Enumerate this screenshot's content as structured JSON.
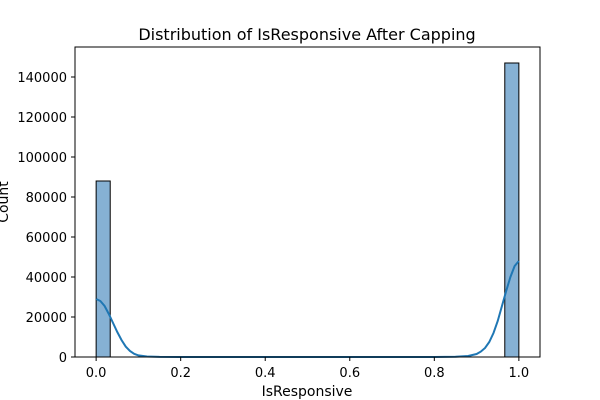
{
  "chart_data": {
    "type": "bar",
    "subtype": "histogram-with-kde",
    "title": "Distribution of IsResponsive After Capping",
    "xlabel": "IsResponsive",
    "ylabel": "Count",
    "xlim": [
      -0.05,
      1.05
    ],
    "ylim": [
      0,
      155000
    ],
    "xticks": [
      0.0,
      0.2,
      0.4,
      0.6,
      0.8,
      1.0
    ],
    "xtick_labels": [
      "0.0",
      "0.2",
      "0.4",
      "0.6",
      "0.8",
      "1.0"
    ],
    "yticks": [
      0,
      20000,
      40000,
      60000,
      80000,
      100000,
      120000,
      140000
    ],
    "ytick_labels": [
      "0",
      "20000",
      "40000",
      "60000",
      "80000",
      "100000",
      "120000",
      "140000"
    ],
    "bins": 30,
    "bars": [
      {
        "x0": 0.0,
        "x1": 0.0333,
        "count": 88000
      },
      {
        "x0": 0.9667,
        "x1": 1.0,
        "count": 147000
      }
    ],
    "kde": {
      "x": [
        0.0,
        0.01,
        0.02,
        0.03,
        0.04,
        0.05,
        0.06,
        0.07,
        0.08,
        0.09,
        0.1,
        0.12,
        0.15,
        0.2,
        0.5,
        0.8,
        0.85,
        0.88,
        0.9,
        0.91,
        0.92,
        0.93,
        0.94,
        0.95,
        0.96,
        0.97,
        0.98,
        0.99,
        1.0
      ],
      "y": [
        29000,
        28000,
        25500,
        21500,
        17000,
        12500,
        8500,
        5200,
        3000,
        1600,
        800,
        250,
        50,
        0,
        0,
        0,
        100,
        500,
        1500,
        2700,
        4500,
        7500,
        12000,
        18000,
        25500,
        33000,
        40000,
        45500,
        48000
      ]
    },
    "grid": false,
    "legend": "none",
    "colors": {
      "bar_fill": "#86b1d4",
      "bar_edge": "#000000",
      "kde_line": "#1f77b4"
    }
  }
}
